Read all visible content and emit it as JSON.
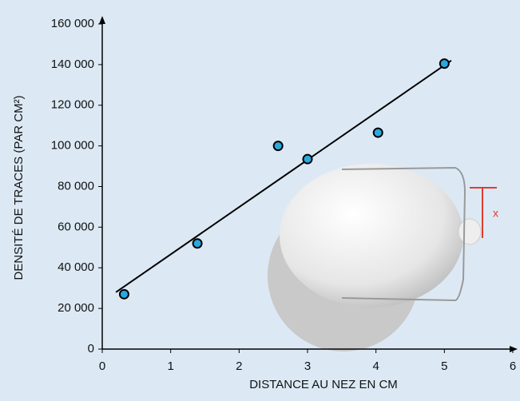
{
  "chart_data": {
    "type": "scatter",
    "x_label": "DISTANCE AU NEZ EN CM",
    "y_label": "DENSITÉ DE TRACES (PAR CM²)",
    "x": [
      0.32,
      1.39,
      2.57,
      3.0,
      4.03,
      5.0
    ],
    "values": [
      27000,
      52000,
      100000,
      93500,
      106500,
      140500
    ],
    "color": "#29a9df",
    "fit": {
      "x": [
        0.2,
        5.1
      ],
      "values": [
        28000,
        142000
      ],
      "color": "#000000"
    },
    "annotation": "x",
    "xlim": [
      0,
      6
    ],
    "xticks": [
      0,
      1,
      2,
      3,
      4,
      5,
      6
    ],
    "ylim": [
      0,
      160000
    ],
    "yticks": [
      {
        "value": 0,
        "label": "0"
      },
      {
        "value": 20000,
        "label": "20 000"
      },
      {
        "value": 40000,
        "label": "40 000"
      },
      {
        "value": 60000,
        "label": "60 000"
      },
      {
        "value": 80000,
        "label": "80 000"
      },
      {
        "value": 100000,
        "label": "100 000"
      },
      {
        "value": 120000,
        "label": "120 000"
      },
      {
        "value": 140000,
        "label": "140 000"
      },
      {
        "value": 160000,
        "label": "160 000"
      }
    ],
    "grid": false
  }
}
